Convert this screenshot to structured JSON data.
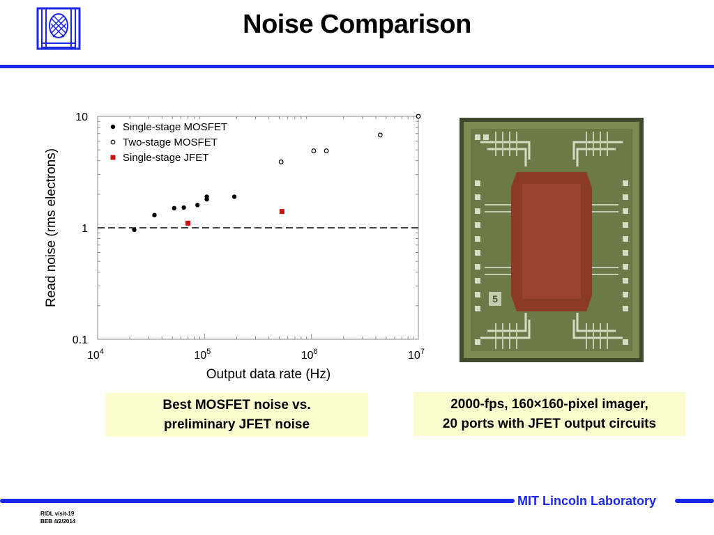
{
  "slide": {
    "title": "Noise Comparison",
    "caption_left": [
      "Best MOSFET noise vs.",
      "preliminary JFET noise"
    ],
    "caption_right_line1": "2000-fps, 160×160-pixel imager,",
    "caption_right_line2": "20 ports with JFET output circuits",
    "footer_line1": "RIDL visit-19",
    "footer_line2": "BEB 4/2/2014",
    "lab_name": "MIT Lincoln Laboratory",
    "chip_label": "5"
  },
  "colors": {
    "accent": "#1a27e8",
    "caption_bg": "#fdfccf",
    "jfet": "#cc1111"
  },
  "icons": {
    "logo": "mit-ll-logo-icon"
  },
  "chart_data": {
    "type": "scatter",
    "xscale": "log",
    "yscale": "log",
    "xlim": [
      10000,
      10000000
    ],
    "ylim": [
      0.1,
      10
    ],
    "xlabel": "Output data rate (Hz)",
    "ylabel": "Read noise (rms electrons)",
    "x_ticks": [
      {
        "value": 10000,
        "base": "10",
        "exp": "4"
      },
      {
        "value": 100000,
        "base": "10",
        "exp": "5"
      },
      {
        "value": 1000000,
        "base": "10",
        "exp": "6"
      },
      {
        "value": 10000000,
        "base": "10",
        "exp": "7"
      }
    ],
    "y_ticks": [
      {
        "value": 10,
        "label": "10"
      },
      {
        "value": 1,
        "label": "1"
      },
      {
        "value": 0.1,
        "label": "0.1"
      }
    ],
    "reference_line": 1,
    "legend_position": "top-left",
    "series": [
      {
        "name": "Single-stage MOSFET",
        "marker": "filled-circle",
        "points": [
          [
            22000,
            0.96
          ],
          [
            34000,
            1.3
          ],
          [
            52000,
            1.5
          ],
          [
            64000,
            1.52
          ],
          [
            86000,
            1.6
          ],
          [
            105000,
            1.8
          ],
          [
            105000,
            1.9
          ],
          [
            190000,
            1.9
          ]
        ]
      },
      {
        "name": "Two-stage MOSFET",
        "marker": "open-circle",
        "points": [
          [
            520000,
            3.9
          ],
          [
            1050000,
            4.9
          ],
          [
            1380000,
            4.9
          ],
          [
            4400000,
            6.8
          ],
          [
            10000000,
            10
          ]
        ]
      },
      {
        "name": "Single-stage JFET",
        "marker": "square",
        "points": [
          [
            70000,
            1.1
          ],
          [
            530000,
            1.4
          ]
        ]
      }
    ]
  }
}
